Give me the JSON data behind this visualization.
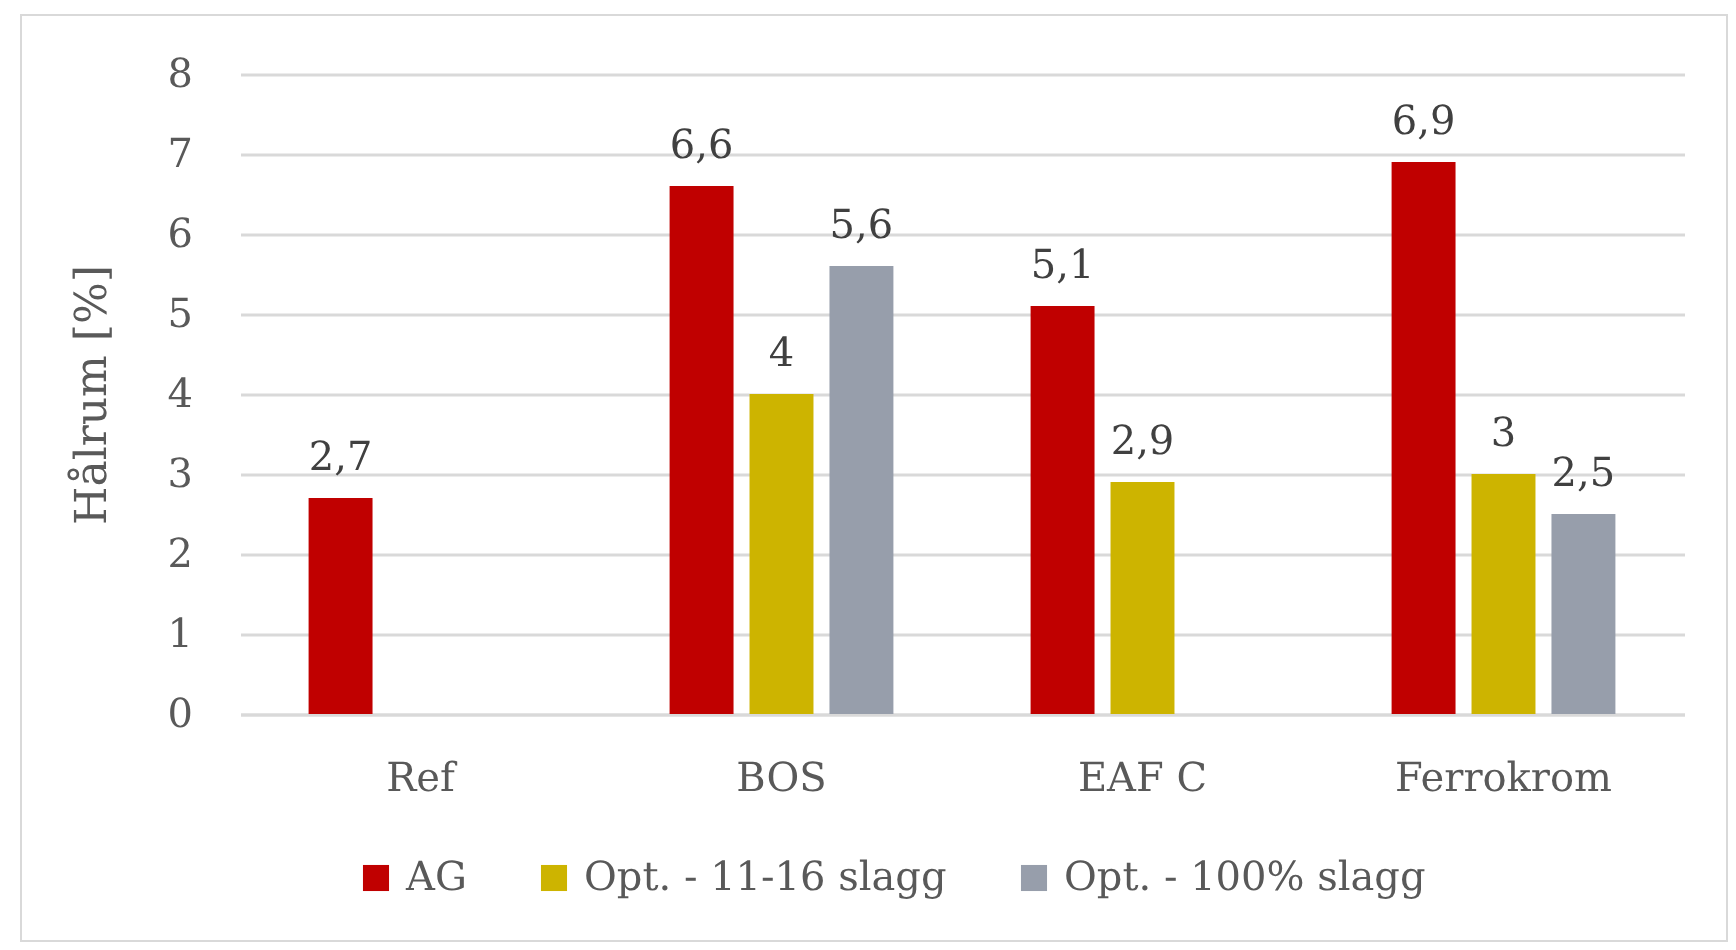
{
  "chart_data": {
    "type": "bar",
    "ylabel": "Hålrum [%]",
    "categories": [
      "Ref",
      "BOS",
      "EAF C",
      "Ferrokrom"
    ],
    "series": [
      {
        "name": "AG",
        "color": "#c00000",
        "values": [
          2.7,
          6.6,
          5.1,
          6.9
        ],
        "value_labels": [
          "2,7",
          "6,6",
          "5,1",
          "6,9"
        ]
      },
      {
        "name": "Opt. - 11-16 slagg",
        "color": "#cdb400",
        "values": [
          null,
          4,
          2.9,
          3
        ],
        "value_labels": [
          null,
          "4",
          "2,9",
          "3"
        ]
      },
      {
        "name": "Opt. - 100% slagg",
        "color": "#979eab",
        "values": [
          null,
          5.6,
          null,
          2.5
        ],
        "value_labels": [
          null,
          "5,6",
          null,
          "2,5"
        ]
      }
    ],
    "ylim": [
      0,
      8
    ],
    "yticks": [
      0,
      1,
      2,
      3,
      4,
      5,
      6,
      7,
      8
    ],
    "grid": "y",
    "legend": "bottom"
  }
}
